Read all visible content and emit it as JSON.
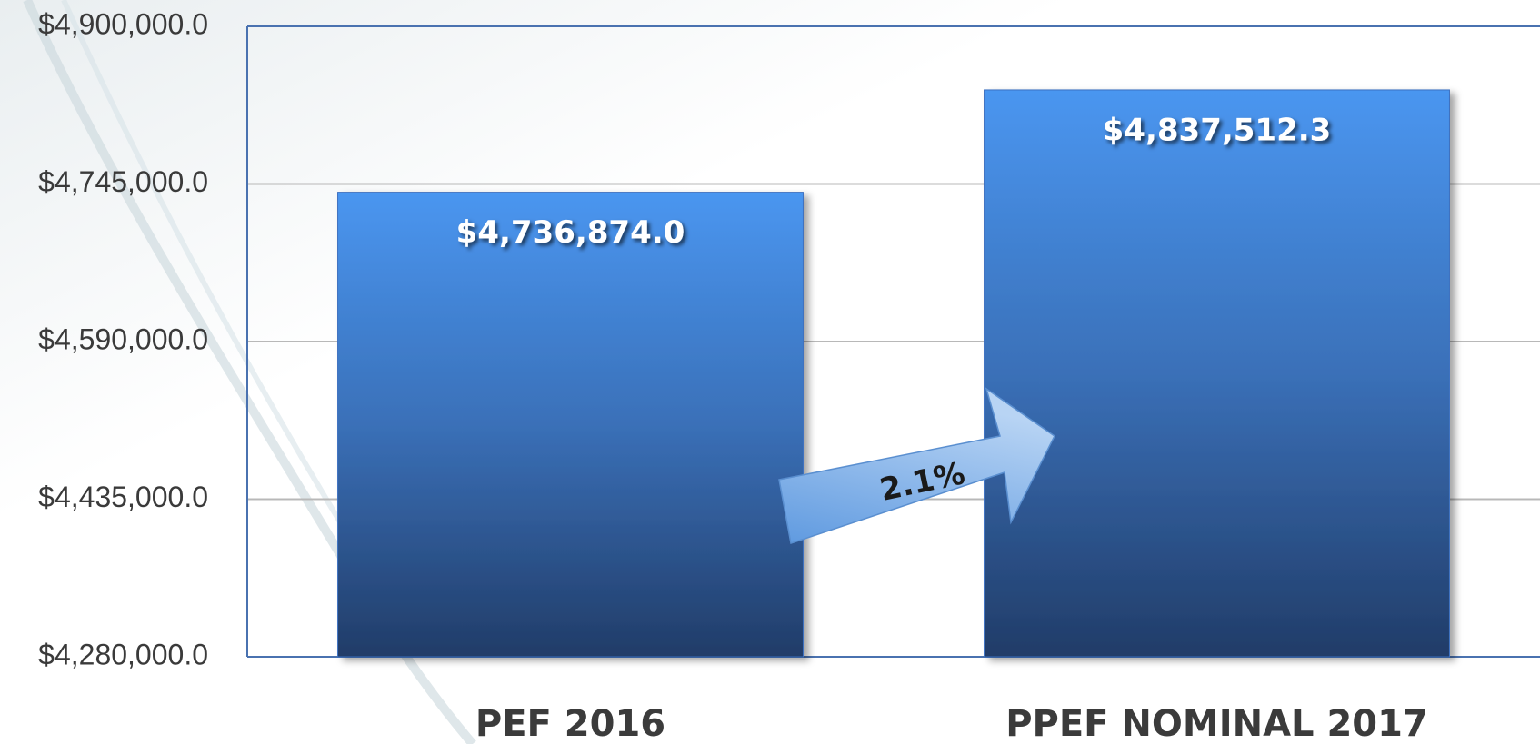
{
  "chart_data": {
    "type": "bar",
    "categories": [
      "PEF 2016",
      "PPEF NOMINAL 2017"
    ],
    "values": [
      4736874.0,
      4837512.3
    ],
    "value_labels": [
      "$4,736,874.0",
      "$4,837,512.3"
    ],
    "color": "#4a96f0",
    "ylim": [
      4280000,
      4900000
    ],
    "yticks": [
      {
        "value": 4280000,
        "label": "$4,280,000.0"
      },
      {
        "value": 4435000,
        "label": "$4,435,000.0"
      },
      {
        "value": 4590000,
        "label": "$4,590,000.0"
      },
      {
        "value": 4745000,
        "label": "$4,745,000.0"
      },
      {
        "value": 4900000,
        "label": "$4,900,000.0"
      }
    ],
    "grid": true,
    "annotation": "2.1%"
  }
}
